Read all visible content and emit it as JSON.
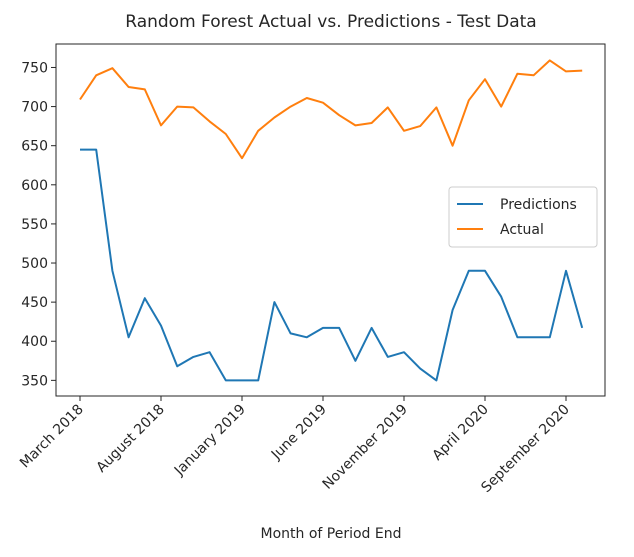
{
  "chart_data": {
    "type": "line",
    "title": "Random Forest Actual vs. Predictions - Test Data",
    "xlabel": "Month of Period End",
    "ylabel": "",
    "x": [
      "2018-03",
      "2018-04",
      "2018-05",
      "2018-06",
      "2018-07",
      "2018-08",
      "2018-09",
      "2018-10",
      "2018-11",
      "2018-12",
      "2019-01",
      "2019-02",
      "2019-03",
      "2019-04",
      "2019-05",
      "2019-06",
      "2019-07",
      "2019-08",
      "2019-09",
      "2019-10",
      "2019-11",
      "2019-12",
      "2020-01",
      "2020-02",
      "2020-03",
      "2020-04",
      "2020-05",
      "2020-06",
      "2020-07",
      "2020-08",
      "2020-09",
      "2020-10"
    ],
    "x_tick_labels": [
      {
        "x": "2018-03",
        "label": "March 2018"
      },
      {
        "x": "2018-08",
        "label": "August 2018"
      },
      {
        "x": "2019-01",
        "label": "January 2019"
      },
      {
        "x": "2019-06",
        "label": "June 2019"
      },
      {
        "x": "2019-11",
        "label": "November 2019"
      },
      {
        "x": "2020-04",
        "label": "April 2020"
      },
      {
        "x": "2020-09",
        "label": "September 2020"
      }
    ],
    "y_ticks": [
      350,
      400,
      450,
      500,
      550,
      600,
      650,
      700,
      750
    ],
    "ylim": [
      330,
      780
    ],
    "grid": false,
    "legend_position": "center-right",
    "series": [
      {
        "name": "Predictions",
        "color": "#1f77b4",
        "values": [
          645,
          645,
          490,
          405,
          455,
          420,
          368,
          380,
          386,
          350,
          350,
          350,
          450,
          410,
          405,
          417,
          417,
          375,
          417,
          380,
          386,
          365,
          350,
          440,
          490,
          490,
          457,
          405,
          405,
          405,
          490,
          417
        ]
      },
      {
        "name": "Actual",
        "color": "#ff7f0e",
        "values": [
          709,
          740,
          749,
          725,
          722,
          676,
          700,
          699,
          681,
          665,
          634,
          669,
          686,
          700,
          711,
          705,
          689,
          676,
          679,
          699,
          669,
          675,
          699,
          650,
          708,
          735,
          700,
          742,
          740,
          759,
          745,
          746
        ]
      }
    ]
  }
}
